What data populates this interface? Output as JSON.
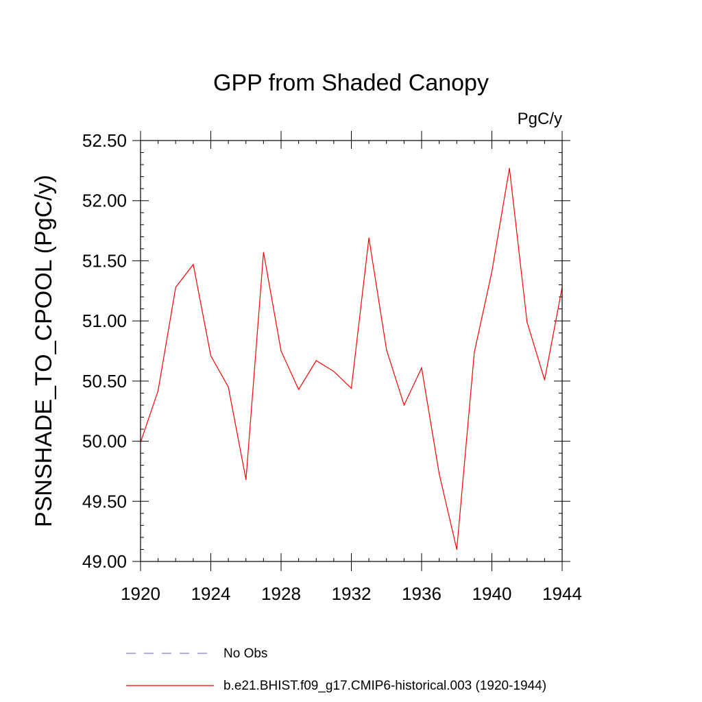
{
  "chart_data": {
    "type": "line",
    "title": "GPP from Shaded Canopy",
    "units_label": "PgC/y",
    "ylabel": "PSNSHADE_TO_CPOOL  (PgC/y)",
    "xlabel": "",
    "xlim": [
      1920,
      1944
    ],
    "ylim": [
      49.0,
      52.5
    ],
    "x_ticks": [
      "1920",
      "1924",
      "1928",
      "1932",
      "1936",
      "1940",
      "1944"
    ],
    "y_ticks": [
      "49.00",
      "49.50",
      "50.00",
      "50.50",
      "51.00",
      "51.50",
      "52.00",
      "52.50"
    ],
    "grid": false,
    "legend_placement": "bottom",
    "series": [
      {
        "name": "b.e21.BHIST.f09_g17.CMIP6-historical.003 (1920-1944)",
        "color": "#ff0000",
        "style": "solid",
        "x": [
          1920,
          1921,
          1922,
          1923,
          1924,
          1925,
          1926,
          1927,
          1928,
          1929,
          1930,
          1931,
          1932,
          1933,
          1934,
          1935,
          1936,
          1937,
          1938,
          1939,
          1940,
          1941,
          1942,
          1943,
          1944
        ],
        "values": [
          49.99,
          50.42,
          51.28,
          51.47,
          50.71,
          50.45,
          49.68,
          51.57,
          50.75,
          50.43,
          50.67,
          50.58,
          50.44,
          51.69,
          50.76,
          50.3,
          50.61,
          49.73,
          49.1,
          50.74,
          51.41,
          52.27,
          50.99,
          50.51,
          51.28
        ]
      }
    ],
    "legend": [
      {
        "label": "No Obs",
        "color": "#8080c0",
        "style": "dashed"
      },
      {
        "label": "b.e21.BHIST.f09_g17.CMIP6-historical.003 (1920-1944)",
        "color": "#ff0000",
        "style": "solid"
      }
    ]
  }
}
